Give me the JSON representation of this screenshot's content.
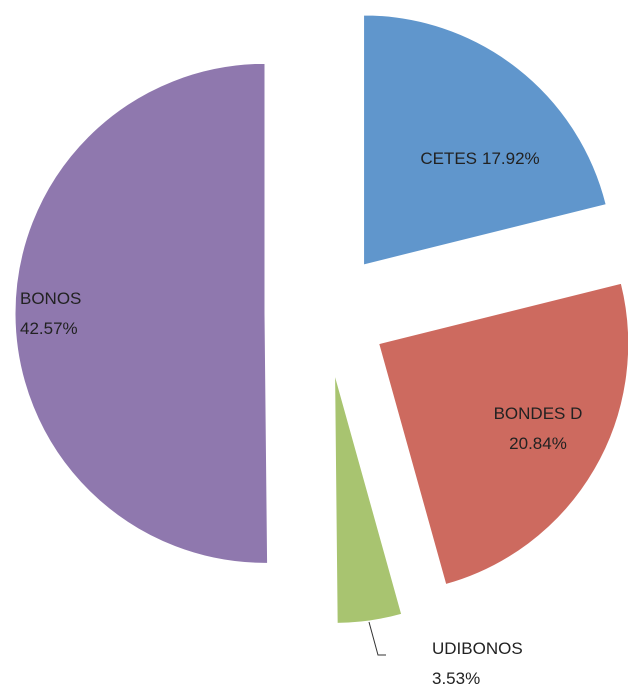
{
  "chart_data": {
    "type": "pie",
    "categories": [
      "CETES",
      "BONDES D",
      "UDIBONOS",
      "BONOS"
    ],
    "values": [
      17.92,
      20.84,
      3.53,
      42.57
    ],
    "value_labels": [
      "17.92%",
      "20.84%",
      "3.53%",
      "42.57%"
    ],
    "colors": [
      "#6096cc",
      "#cd6a5f",
      "#a8c470",
      "#8f78ae"
    ],
    "exploded": true
  }
}
